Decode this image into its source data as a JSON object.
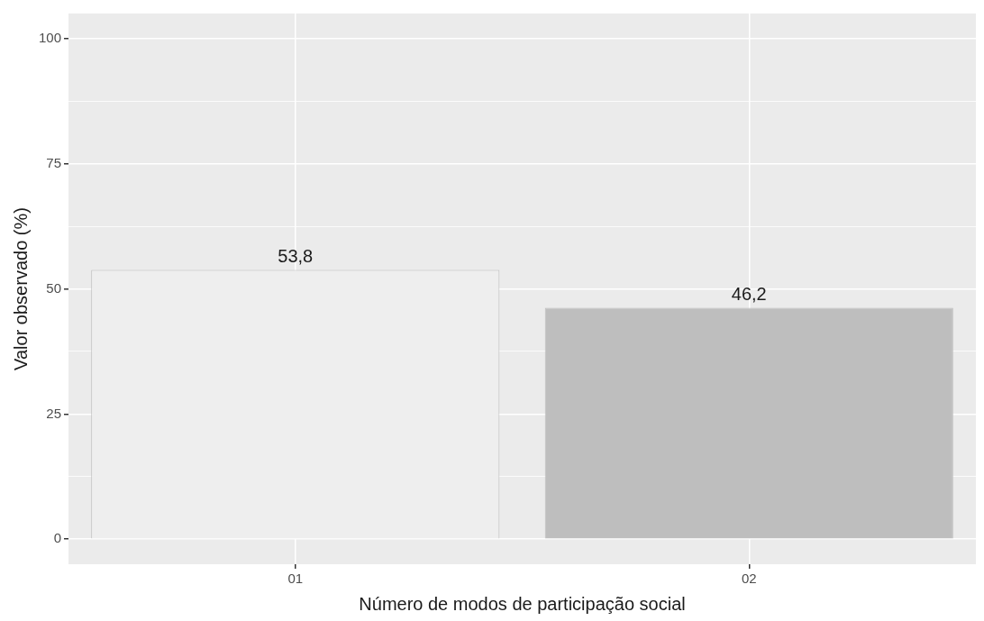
{
  "chart_data": {
    "type": "bar",
    "xlabel": "Número de modos de participação social",
    "ylabel": "Valor observado (%)",
    "categories": [
      "01",
      "02"
    ],
    "values": [
      53.8,
      46.2
    ],
    "colors": [
      "#eeeeee",
      "#bebebe"
    ],
    "value_labels": [
      "53,8",
      "46,2"
    ],
    "ylim": [
      -5,
      105
    ],
    "yticks": [
      0,
      {
        "value": 12.5,
        "label": null
      },
      25,
      {
        "value": 37.5,
        "label": null
      },
      50,
      {
        "value": 62.5,
        "label": null
      },
      75,
      {
        "value": 87.5,
        "label": null
      },
      100
    ],
    "grid": true
  }
}
